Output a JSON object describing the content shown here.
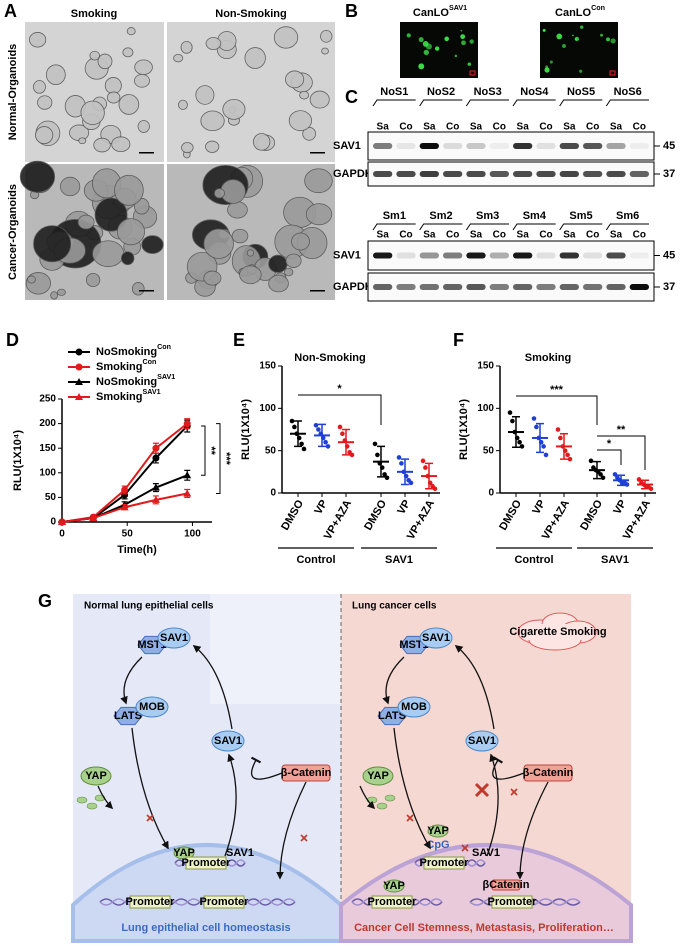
{
  "panel_a": {
    "label": "A",
    "columns": [
      "Smoking",
      "Non-Smoking"
    ],
    "rows": [
      "Normal-Organoids",
      "Cancer-Organoids"
    ]
  },
  "panel_b": {
    "label": "B",
    "images": [
      {
        "text": "CanLO",
        "superscript": "SAV1"
      },
      {
        "text": "CanLO",
        "superscript": "Con"
      }
    ]
  },
  "panel_c": {
    "label": "C",
    "blots": [
      {
        "samples": [
          "NoS1",
          "NoS2",
          "NoS3",
          "NoS4",
          "NoS5",
          "NoS6"
        ],
        "lanes": [
          "Sa",
          "Co",
          "Sa",
          "Co",
          "Sa",
          "Co",
          "Sa",
          "Co",
          "Sa",
          "Co",
          "Sa",
          "Co"
        ],
        "rows": [
          "SAV1",
          "GAPDH"
        ],
        "markers": [
          "45",
          "37"
        ]
      },
      {
        "samples": [
          "Sm1",
          "Sm2",
          "Sm3",
          "Sm4",
          "Sm5",
          "Sm6"
        ],
        "lanes": [
          "Sa",
          "Co",
          "Sa",
          "Co",
          "Sa",
          "Co",
          "Sa",
          "Co",
          "Sa",
          "Co",
          "Sa",
          "Co"
        ],
        "rows": [
          "SAV1",
          "GAPDH"
        ],
        "markers": [
          "45",
          "37"
        ]
      }
    ]
  },
  "chart_data": [
    {
      "type": "line",
      "label": "D",
      "x_label": "Time(h)",
      "y_label": "RLU(1X10⁴)",
      "x": [
        0,
        24,
        48,
        72,
        96
      ],
      "xlim": [
        0,
        115
      ],
      "xticks": [
        0,
        50,
        100
      ],
      "ylim": [
        0,
        250
      ],
      "yticks": [
        0,
        50,
        100,
        150,
        200,
        250
      ],
      "series": [
        {
          "name": "NoSmoking",
          "superscript": "Con",
          "color": "#000000",
          "marker": "circle",
          "values": [
            0,
            8,
            55,
            130,
            195
          ],
          "errors": [
            1,
            3,
            8,
            10,
            12
          ]
        },
        {
          "name": "Smoking",
          "superscript": "Con",
          "color": "#e31a1c",
          "marker": "circle",
          "values": [
            0,
            10,
            65,
            150,
            200
          ],
          "errors": [
            1,
            3,
            8,
            10,
            10
          ]
        },
        {
          "name": "NoSmoking",
          "superscript": "SAV1",
          "color": "#000000",
          "marker": "triangle",
          "values": [
            0,
            8,
            35,
            70,
            95
          ],
          "errors": [
            1,
            3,
            6,
            8,
            10
          ]
        },
        {
          "name": "Smoking",
          "superscript": "SAV1",
          "color": "#e31a1c",
          "marker": "triangle",
          "values": [
            0,
            8,
            30,
            45,
            58
          ],
          "errors": [
            1,
            3,
            5,
            8,
            8
          ]
        }
      ],
      "annotations": [
        "**",
        "***"
      ]
    },
    {
      "type": "dot",
      "label": "E",
      "title": "Non-Smoking",
      "y_label": "RLU(1X10⁴)",
      "categories": [
        "DMSO",
        "VP",
        "VP+AZA",
        "DMSO",
        "VP",
        "VP+AZA"
      ],
      "groups": [
        "Control",
        "SAV1"
      ],
      "colors": [
        "#000000",
        "#1f3fd6",
        "#e31a1c",
        "#000000",
        "#1f3fd6",
        "#e31a1c"
      ],
      "values": [
        70,
        68,
        60,
        37,
        25,
        20
      ],
      "errors": [
        15,
        13,
        15,
        18,
        15,
        15
      ],
      "points": [
        [
          85,
          78,
          70,
          65,
          58,
          52
        ],
        [
          80,
          75,
          70,
          65,
          60,
          55
        ],
        [
          78,
          70,
          62,
          55,
          48,
          45
        ],
        [
          58,
          45,
          35,
          30,
          22,
          18
        ],
        [
          42,
          35,
          25,
          20,
          15,
          12
        ],
        [
          38,
          30,
          20,
          12,
          8,
          5
        ]
      ],
      "ylim": [
        0,
        150
      ],
      "yticks": [
        0,
        50,
        100,
        150
      ],
      "annotations": [
        "*"
      ]
    },
    {
      "type": "dot",
      "label": "F",
      "title": "Smoking",
      "y_label": "RLU(1X10⁴)",
      "categories": [
        "DMSO",
        "VP",
        "VP+AZA",
        "DMSO",
        "VP",
        "VP+AZA"
      ],
      "groups": [
        "Control",
        "SAV1"
      ],
      "colors": [
        "#000000",
        "#1f3fd6",
        "#e31a1c",
        "#000000",
        "#1f3fd6",
        "#e31a1c"
      ],
      "values": [
        72,
        65,
        55,
        27,
        15,
        10
      ],
      "errors": [
        18,
        17,
        15,
        10,
        6,
        5
      ],
      "points": [
        [
          95,
          85,
          72,
          65,
          60,
          55
        ],
        [
          88,
          78,
          65,
          60,
          55,
          45
        ],
        [
          75,
          65,
          55,
          50,
          45,
          40
        ],
        [
          38,
          30,
          27,
          25,
          22,
          18
        ],
        [
          22,
          18,
          15,
          12,
          12,
          10
        ],
        [
          16,
          12,
          10,
          8,
          7,
          5
        ]
      ],
      "ylim": [
        0,
        150
      ],
      "yticks": [
        0,
        50,
        100,
        150
      ],
      "annotations": [
        "***",
        "*",
        "**"
      ]
    }
  ],
  "panel_g": {
    "label": "G",
    "left": {
      "title": "Normal lung epithelial cells",
      "nodes": [
        "MST1",
        "SAV1",
        "LATS",
        "MOB",
        "SAV1",
        "YAP",
        "β-Catenin",
        "YAP",
        "Promoter",
        "SAV1",
        "Promoter",
        "Promoter"
      ],
      "caption": "Lung epithelial cell homeostasis"
    },
    "right": {
      "title": "Lung cancer cells",
      "trigger": "Cigarette Smoking",
      "nodes": [
        "MST1",
        "SAV1",
        "LATS",
        "MOB",
        "SAV1",
        "YAP",
        "β-Catenin",
        "YAP",
        "CpG",
        "Promoter",
        "SAV1",
        "YAP",
        "Promoter",
        "βCatenin",
        "Promoter"
      ],
      "caption": "Cancer Cell Stemness, Metastasis, Proliferation…"
    }
  }
}
